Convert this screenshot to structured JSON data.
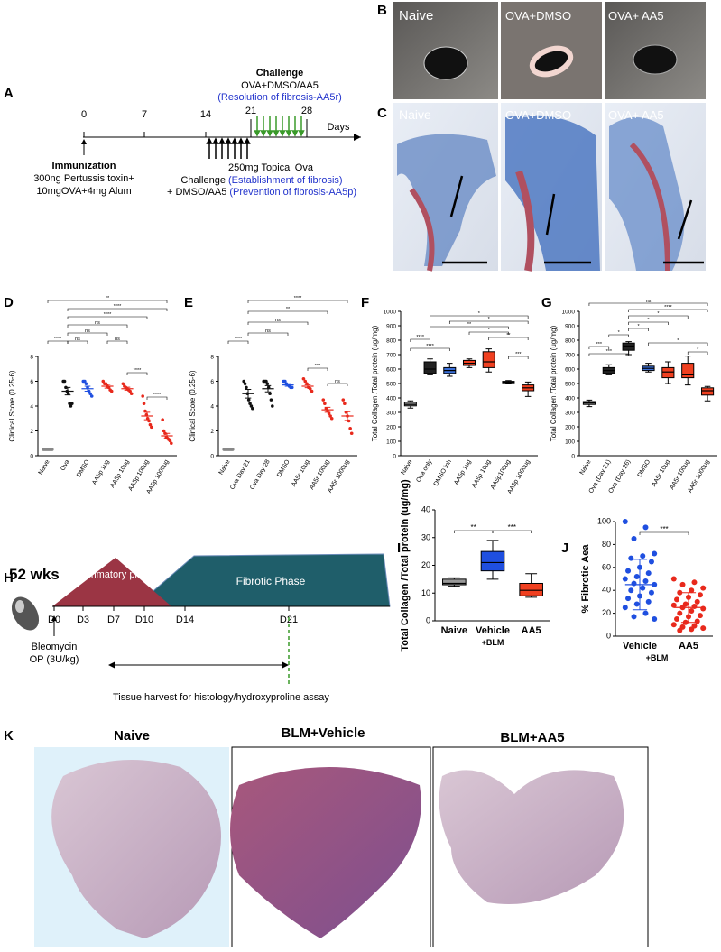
{
  "figure": {
    "panel_labels": {
      "a": "A",
      "b": "B",
      "c": "C",
      "h": "H",
      "k": "K"
    },
    "a": {
      "ticks": [
        "0",
        "7",
        "14",
        "21",
        "28"
      ],
      "days": "Days",
      "challenge_title": "Challenge",
      "challenge_groups": "OVA+DMSO/AA5",
      "resolution": "(Resolution of fibrosis-AA5r)",
      "immunization": "Immunization",
      "immunization_lines": [
        "300ng Pertussis toxin+",
        "10mgOVA+4mg Alum"
      ],
      "topical": "250mg Topical Ova",
      "challenge2": "Challenge ",
      "establishment": "(Establishment of fibrosis)",
      "dmso": "+ DMSO/AA5 ",
      "prevention": "(Prevention of fibrosis-AA5p)"
    },
    "b": {
      "labels": [
        "Naive",
        "OVA+DMSO",
        "OVA+ AA5"
      ]
    },
    "c": {
      "labels": [
        "Naive",
        "OVA+DMSO",
        "OVA+ AA5"
      ]
    },
    "h": {
      "age": "52 wks",
      "inflammatory": "Inflammatory phase",
      "fibrotic": "Fibrotic Phase",
      "days": [
        "D0",
        "D3",
        "D7",
        "D10",
        "D14",
        "D21"
      ],
      "bleomycin": "Bleomycin",
      "dose": "OP (3U/kg)",
      "harvest": "Tissue harvest for histology/hydroxyproline assay"
    },
    "k": {
      "labels": [
        "Naive",
        "BLM+Vehicle",
        "BLM+AA5"
      ]
    }
  },
  "chart_data": [
    {
      "type": "dot",
      "label": "D",
      "y_label": "Clinical Score (0.25-6)",
      "categories": [
        "Naive",
        "Ova",
        "DMSO",
        "AA5p 1ug",
        "AA5p 10ug",
        "AA5p 100ug",
        "AA5p 1000ug"
      ],
      "colors": [
        "#888888",
        "#111111",
        "#1f4fe0",
        "#e8291c",
        "#e8291c",
        "#e8291c",
        "#e8291c"
      ],
      "values": [
        0.5,
        5.2,
        5.4,
        5.6,
        5.4,
        3.2,
        1.6
      ],
      "errors": [
        0,
        0.3,
        0.2,
        0.15,
        0.12,
        0.3,
        0.2
      ],
      "points": [
        [
          0.5,
          0.5,
          0.5,
          0.5,
          0.5,
          0.5,
          0.5
        ],
        [
          6,
          6,
          5.5,
          5.2,
          5,
          4.2,
          4,
          4.2
        ],
        [
          6,
          6,
          5.8,
          5.5,
          5.2,
          5,
          4.8
        ],
        [
          6,
          5.8,
          5.8,
          5.6,
          5.5,
          5.3,
          5.2
        ],
        [
          5.8,
          5.6,
          5.5,
          5.4,
          5.3,
          5.2,
          5
        ],
        [
          4.8,
          4.2,
          3.6,
          3.3,
          3,
          2.8,
          2.5,
          2.3
        ],
        [
          2.9,
          2,
          1.8,
          1.5,
          1.4,
          1.3,
          1.2,
          1
        ]
      ],
      "ylim": [
        0,
        8
      ],
      "yticks": [
        0,
        2,
        4,
        6,
        8
      ],
      "brackets": [
        "**",
        "****",
        "****",
        "ns",
        "ns",
        "ns",
        "****",
        "ns",
        "****",
        "****"
      ]
    },
    {
      "type": "dot",
      "label": "E",
      "y_label": "Clinical Score (0.25-6)",
      "categories": [
        "Naive",
        "Ova Day 21",
        "Ova Day 28",
        "DMSO",
        "AA5r 10ug",
        "AA5r 100ug",
        "AA5r 1000ug"
      ],
      "colors": [
        "#888888",
        "#111111",
        "#111111",
        "#1f4fe0",
        "#e8291c",
        "#e8291c",
        "#e8291c"
      ],
      "values": [
        0.5,
        5.0,
        5.4,
        5.7,
        5.6,
        3.7,
        3.2
      ],
      "errors": [
        0,
        0.35,
        0.25,
        0.1,
        0.12,
        0.2,
        0.35
      ],
      "points": [
        [
          0.5,
          0.5,
          0.5,
          0.5,
          0.5,
          0.5,
          0.5
        ],
        [
          6,
          5.8,
          5.5,
          5,
          4.5,
          4.2,
          4,
          3.8
        ],
        [
          6,
          6,
          6,
          5.8,
          5.5,
          5,
          4.5,
          4
        ],
        [
          6,
          6,
          5.8,
          5.7,
          5.6,
          5.5,
          5.5
        ],
        [
          6.2,
          6,
          5.8,
          5.5,
          5.4,
          5.2
        ],
        [
          4.5,
          4.2,
          3.8,
          3.6,
          3.4,
          3.2,
          3
        ],
        [
          4.5,
          4.2,
          3.5,
          3.2,
          2.8,
          2.2,
          1.8
        ]
      ],
      "ylim": [
        0,
        8
      ],
      "yticks": [
        0,
        2,
        4,
        6,
        8
      ],
      "brackets": [
        "****",
        "**",
        "ns",
        "ns",
        "****",
        "***",
        "ns"
      ]
    },
    {
      "type": "box",
      "label": "F",
      "y_label": "Total Collagen /Total protein (ug/mg)",
      "categories": [
        "Naive",
        "Ova only",
        "DMSO inh",
        "AA5p 1ug",
        "AA5p 10ug",
        "AA5p100ug",
        "AA5p 1000ug"
      ],
      "colors": [
        "#999999",
        "#222222",
        "#3a6fd8",
        "#f04020",
        "#f04020",
        "#f04020",
        "#f04020"
      ],
      "boxes": [
        {
          "min": 330,
          "q1": 345,
          "median": 355,
          "q3": 370,
          "max": 380
        },
        {
          "min": 560,
          "q1": 570,
          "median": 600,
          "q3": 650,
          "max": 670
        },
        {
          "min": 550,
          "q1": 570,
          "median": 590,
          "q3": 610,
          "max": 640
        },
        {
          "min": 610,
          "q1": 625,
          "median": 640,
          "q3": 660,
          "max": 670
        },
        {
          "min": 580,
          "q1": 610,
          "median": 650,
          "q3": 720,
          "max": 740
        },
        {
          "min": 500,
          "q1": 505,
          "median": 510,
          "q3": 515,
          "max": 520
        },
        {
          "min": 410,
          "q1": 450,
          "median": 470,
          "q3": 490,
          "max": 510
        }
      ],
      "ylim": [
        0,
        1000
      ],
      "yticks": [
        0,
        100,
        200,
        300,
        400,
        500,
        600,
        700,
        800,
        900,
        1000
      ],
      "brackets": [
        "*",
        "*",
        "**",
        "*",
        "**",
        "***",
        "****",
        "****"
      ]
    },
    {
      "type": "box",
      "label": "G",
      "y_label": "Total Collagen /Total protein (ug/mg)",
      "categories": [
        "Naive",
        "Ova  (Day 21)",
        "Ova  (Day 26)",
        "DMSO",
        "AA5r 10ug",
        "AA5r 100ug",
        "AA5r 1000ug"
      ],
      "colors": [
        "#999999",
        "#222222",
        "#222222",
        "#3a6fd8",
        "#f04020",
        "#f04020",
        "#f04020"
      ],
      "boxes": [
        {
          "min": 340,
          "q1": 355,
          "median": 365,
          "q3": 375,
          "max": 385
        },
        {
          "min": 560,
          "q1": 570,
          "median": 590,
          "q3": 610,
          "max": 630
        },
        {
          "min": 700,
          "q1": 730,
          "median": 760,
          "q3": 780,
          "max": 790
        },
        {
          "min": 580,
          "q1": 590,
          "median": 605,
          "q3": 620,
          "max": 640
        },
        {
          "min": 500,
          "q1": 540,
          "median": 580,
          "q3": 610,
          "max": 650
        },
        {
          "min": 490,
          "q1": 540,
          "median": 560,
          "q3": 640,
          "max": 690
        },
        {
          "min": 380,
          "q1": 420,
          "median": 450,
          "q3": 470,
          "max": 480
        }
      ],
      "ylim": [
        0,
        1000
      ],
      "yticks": [
        0,
        100,
        200,
        300,
        400,
        500,
        600,
        700,
        800,
        900,
        1000
      ],
      "brackets": [
        "ns",
        "****",
        "*",
        "*",
        "*",
        "*",
        "*",
        "***",
        "***",
        "*"
      ]
    },
    {
      "type": "box",
      "label": "I",
      "y_label": "Total Collagen /Total protein (ug/mg)",
      "x_label": "+BLM",
      "categories": [
        "Naive",
        "Vehicle",
        "AA5"
      ],
      "colors": [
        "#999999",
        "#1f4fe0",
        "#f04020"
      ],
      "boxes": [
        {
          "min": 12.5,
          "q1": 13,
          "median": 13.5,
          "q3": 15,
          "max": 15.5
        },
        {
          "min": 15,
          "q1": 18,
          "median": 21,
          "q3": 25,
          "max": 29
        },
        {
          "min": 8.5,
          "q1": 9,
          "median": 11,
          "q3": 13.5,
          "max": 17
        }
      ],
      "ylim": [
        0,
        40
      ],
      "yticks": [
        0,
        10,
        20,
        30,
        40
      ],
      "brackets": [
        "**",
        "***"
      ]
    },
    {
      "type": "dot",
      "label": "J",
      "y_label": "% Fibrotic Aea",
      "x_label": "+BLM",
      "categories": [
        "Vehicle",
        "AA5"
      ],
      "colors": [
        "#1f4fe0",
        "#e8291c"
      ],
      "values": [
        45,
        25
      ],
      "errors": [
        22,
        13
      ],
      "points": [
        [
          100,
          95,
          85,
          72,
          70,
          68,
          65,
          60,
          57,
          55,
          52,
          50,
          48,
          46,
          45,
          42,
          40,
          38,
          35,
          33,
          30,
          28,
          25,
          20,
          17,
          15
        ],
        [
          50,
          47,
          45,
          42,
          40,
          38,
          36,
          34,
          32,
          30,
          28,
          27,
          26,
          25,
          24,
          22,
          20,
          18,
          17,
          15,
          13,
          12,
          10,
          9,
          8,
          7,
          6,
          5
        ]
      ],
      "ylim": [
        0,
        100
      ],
      "yticks": [
        0,
        20,
        40,
        60,
        80,
        100
      ],
      "brackets": [
        "***"
      ]
    }
  ]
}
